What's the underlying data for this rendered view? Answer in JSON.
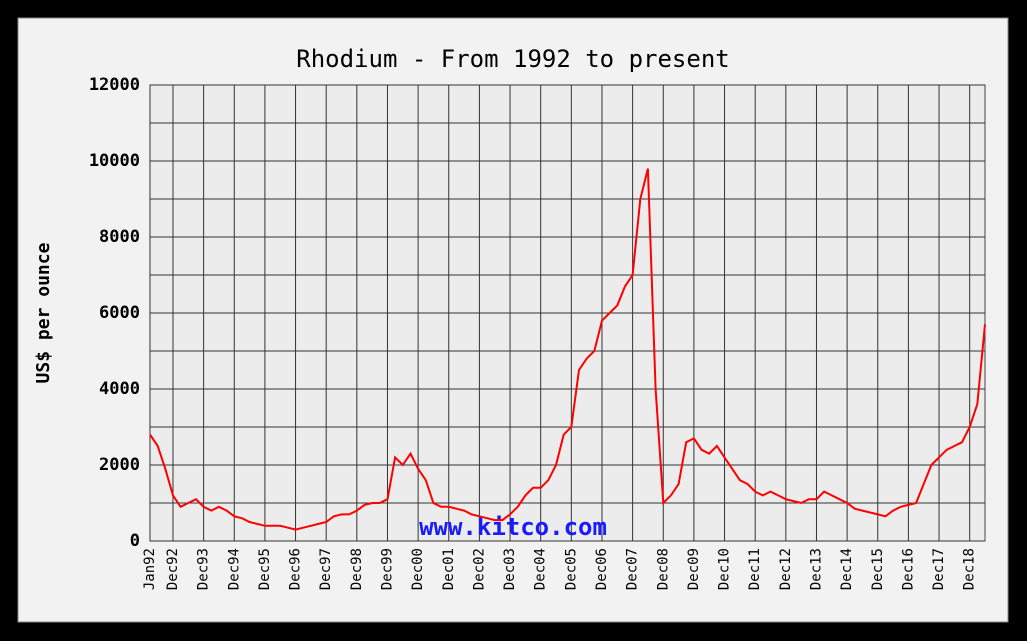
{
  "chart_data": {
    "type": "line",
    "title": "Rhodium - From 1992 to present",
    "y_label": "US$ per ounce",
    "watermark": "www.kitco.com",
    "color": "#ff0000",
    "grid": true,
    "ylim": [
      0,
      12000
    ],
    "yticks": [
      0,
      2000,
      4000,
      6000,
      8000,
      10000,
      12000
    ],
    "ygrid": [
      0,
      1000,
      2000,
      3000,
      4000,
      5000,
      6000,
      7000,
      8000,
      9000,
      10000,
      11000,
      12000
    ],
    "categories": [
      "Jan92",
      null,
      null,
      "Dec92",
      null,
      null,
      null,
      "Dec93",
      null,
      null,
      null,
      "Dec94",
      null,
      null,
      null,
      "Dec95",
      null,
      null,
      null,
      "Dec96",
      null,
      null,
      null,
      "Dec97",
      null,
      null,
      null,
      "Dec98",
      null,
      null,
      null,
      "Dec99",
      null,
      null,
      null,
      "Dec00",
      null,
      null,
      null,
      "Dec01",
      null,
      null,
      null,
      "Dec02",
      null,
      null,
      null,
      "Dec03",
      null,
      null,
      null,
      "Dec04",
      null,
      null,
      null,
      "Dec05",
      null,
      null,
      null,
      "Dec06",
      null,
      null,
      null,
      "Dec07",
      null,
      null,
      null,
      "Dec08",
      null,
      null,
      null,
      "Dec09",
      null,
      null,
      null,
      "Dec10",
      null,
      null,
      null,
      "Dec11",
      null,
      null,
      null,
      "Dec12",
      null,
      null,
      null,
      "Dec13",
      null,
      null,
      null,
      "Dec14",
      null,
      null,
      null,
      "Dec15",
      null,
      null,
      null,
      "Dec16",
      null,
      null,
      null,
      "Dec17",
      null,
      null,
      null,
      "Dec18",
      null,
      null
    ],
    "values": [
      2800,
      2500,
      1900,
      1200,
      900,
      1000,
      1100,
      900,
      800,
      900,
      800,
      650,
      600,
      500,
      450,
      400,
      400,
      400,
      350,
      300,
      350,
      400,
      450,
      500,
      650,
      700,
      700,
      800,
      950,
      1000,
      1000,
      1100,
      2200,
      2000,
      2300,
      1900,
      1600,
      1000,
      900,
      900,
      850,
      800,
      700,
      650,
      600,
      550,
      550,
      700,
      900,
      1200,
      1400,
      1400,
      1600,
      2000,
      2800,
      3000,
      4500,
      4800,
      5000,
      5800,
      6000,
      6200,
      6700,
      7000,
      9000,
      9800,
      4000,
      1000,
      1200,
      1500,
      2600,
      2700,
      2400,
      2300,
      2500,
      2200,
      1900,
      1600,
      1500,
      1300,
      1200,
      1300,
      1200,
      1100,
      1050,
      1000,
      1100,
      1100,
      1300,
      1200,
      1100,
      1000,
      850,
      800,
      750,
      700,
      650,
      800,
      900,
      950,
      1000,
      1500,
      2000,
      2200,
      2400,
      2500,
      2600,
      3000,
      3600,
      5700
    ]
  }
}
